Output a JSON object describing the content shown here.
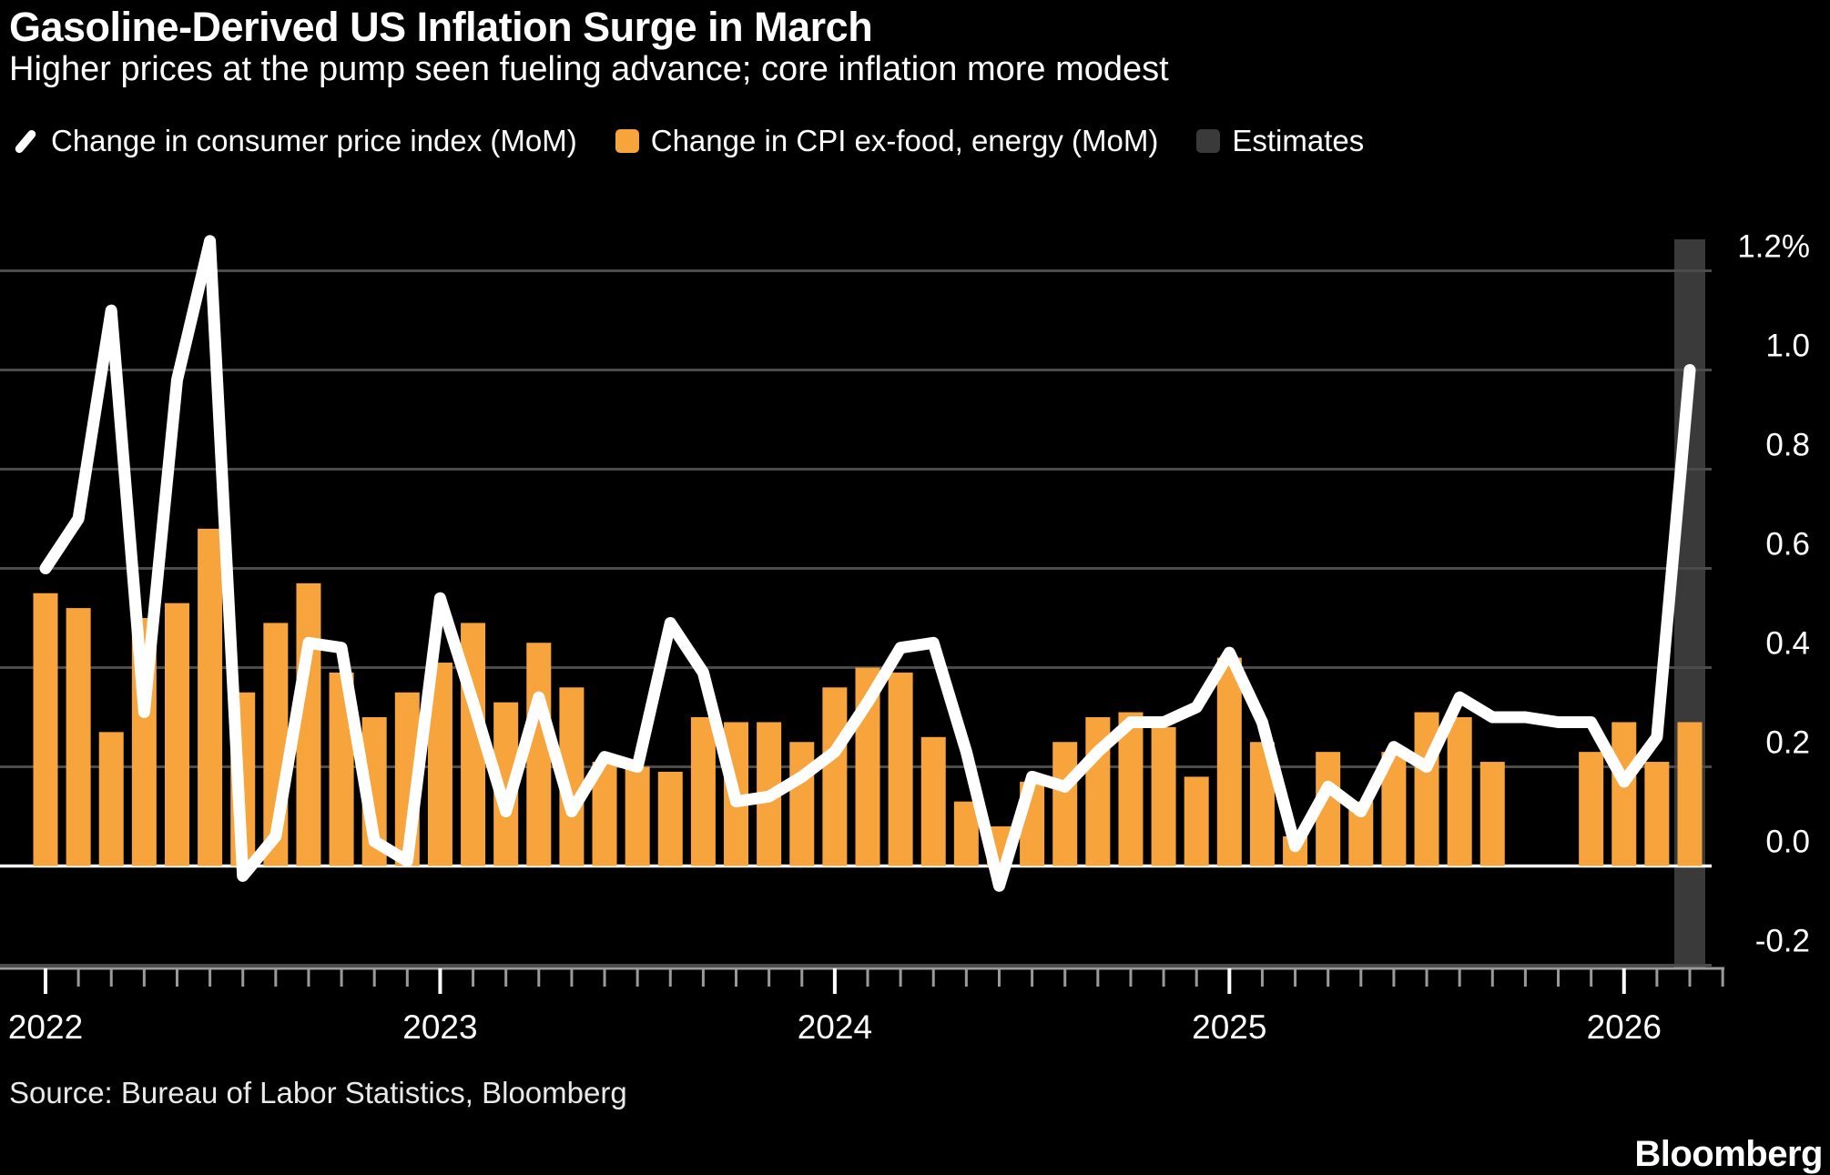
{
  "colors": {
    "background": "#000000",
    "bar": "#F7A43C",
    "line": "#FFFFFF",
    "estimate_band": "#3A3A3A",
    "gridline": "#4B4B4B",
    "zero_line": "#FFFFFF",
    "axis": "#9A9A9A",
    "text": "#FFFFFF"
  },
  "chart_data": {
    "type": "combo (line + bar)",
    "title": "Gasoline-Derived US Inflation Surge in March",
    "subtitle": "Higher prices at the pump seen fueling advance; core inflation more modest",
    "source": "Source: Bureau of Labor Statistics, Bloomberg",
    "brand": "Bloomberg",
    "legend": [
      {
        "label": "Change in consumer price index (MoM)",
        "marker": "line",
        "color": "#FFFFFF"
      },
      {
        "label": "Change in CPI ex-food, energy (MoM)",
        "marker": "square",
        "color": "#F7A43C"
      },
      {
        "label": "Estimates",
        "marker": "square",
        "color": "#3A3A3A"
      }
    ],
    "y_axis": {
      "unit": "%",
      "range": [
        -0.2,
        1.26
      ],
      "grid": true,
      "ticks": [
        {
          "value": 1.2,
          "label": "1.2%"
        },
        {
          "value": 1.0,
          "label": "1.0"
        },
        {
          "value": 0.8,
          "label": "0.8"
        },
        {
          "value": 0.6,
          "label": "0.6"
        },
        {
          "value": 0.4,
          "label": "0.4"
        },
        {
          "value": 0.2,
          "label": "0.2"
        },
        {
          "value": 0.0,
          "label": "0.0"
        },
        {
          "value": -0.2,
          "label": "-0.2"
        }
      ]
    },
    "x_axis": {
      "tick_every": "month",
      "years": [
        {
          "label": "2022",
          "month_index": 0
        },
        {
          "label": "2023",
          "month_index": 12
        },
        {
          "label": "2024",
          "month_index": 24
        },
        {
          "label": "2025",
          "month_index": 36
        },
        {
          "label": "2026",
          "month_index": 48
        }
      ]
    },
    "months": [
      "2022-01",
      "2022-02",
      "2022-03",
      "2022-04",
      "2022-05",
      "2022-06",
      "2022-07",
      "2022-08",
      "2022-09",
      "2022-10",
      "2022-11",
      "2022-12",
      "2023-01",
      "2023-02",
      "2023-03",
      "2023-04",
      "2023-05",
      "2023-06",
      "2023-07",
      "2023-08",
      "2023-09",
      "2023-10",
      "2023-11",
      "2023-12",
      "2024-01",
      "2024-02",
      "2024-03",
      "2024-04",
      "2024-05",
      "2024-06",
      "2024-07",
      "2024-08",
      "2024-09",
      "2024-10",
      "2024-11",
      "2024-12",
      "2025-01",
      "2025-02",
      "2025-03",
      "2025-04",
      "2025-05",
      "2025-06",
      "2025-07",
      "2025-08",
      "2025-09",
      "2025-10",
      "2025-11",
      "2025-12",
      "2026-01",
      "2026-02",
      "2026-03"
    ],
    "series": [
      {
        "name": "Change in consumer price index (MoM)",
        "type": "line",
        "unit": "%",
        "values": [
          0.6,
          0.7,
          1.12,
          0.31,
          0.98,
          1.26,
          -0.02,
          0.06,
          0.45,
          0.44,
          0.05,
          0.01,
          0.54,
          0.33,
          0.11,
          0.34,
          0.11,
          0.22,
          0.2,
          0.49,
          0.39,
          0.13,
          0.14,
          0.18,
          0.23,
          0.33,
          0.44,
          0.45,
          0.23,
          -0.04,
          0.18,
          0.16,
          0.23,
          0.29,
          0.29,
          0.32,
          0.43,
          0.29,
          0.04,
          0.16,
          0.11,
          0.24,
          0.2,
          0.34,
          0.3,
          0.3,
          0.29,
          0.29,
          0.17,
          0.26,
          1.0
        ]
      },
      {
        "name": "Change in CPI ex-food, energy (MoM)",
        "type": "bar",
        "unit": "%",
        "values": [
          0.55,
          0.52,
          0.27,
          0.5,
          0.53,
          0.68,
          0.35,
          0.49,
          0.57,
          0.39,
          0.3,
          0.35,
          0.41,
          0.49,
          0.33,
          0.45,
          0.36,
          0.21,
          0.2,
          0.19,
          0.3,
          0.29,
          0.29,
          0.25,
          0.36,
          0.4,
          0.39,
          0.26,
          0.13,
          0.08,
          0.17,
          0.25,
          0.3,
          0.31,
          0.28,
          0.18,
          0.42,
          0.25,
          0.06,
          0.23,
          0.13,
          0.23,
          0.31,
          0.3,
          0.21,
          null,
          null,
          0.23,
          0.29,
          0.21,
          0.29
        ]
      }
    ],
    "estimate_months": [
      "2026-03"
    ],
    "notes": "No bars for 2025-10 and 2025-11 (data gap); line runs flat across the gap. Final month (2026-03) is an estimate shown over a gray band."
  }
}
